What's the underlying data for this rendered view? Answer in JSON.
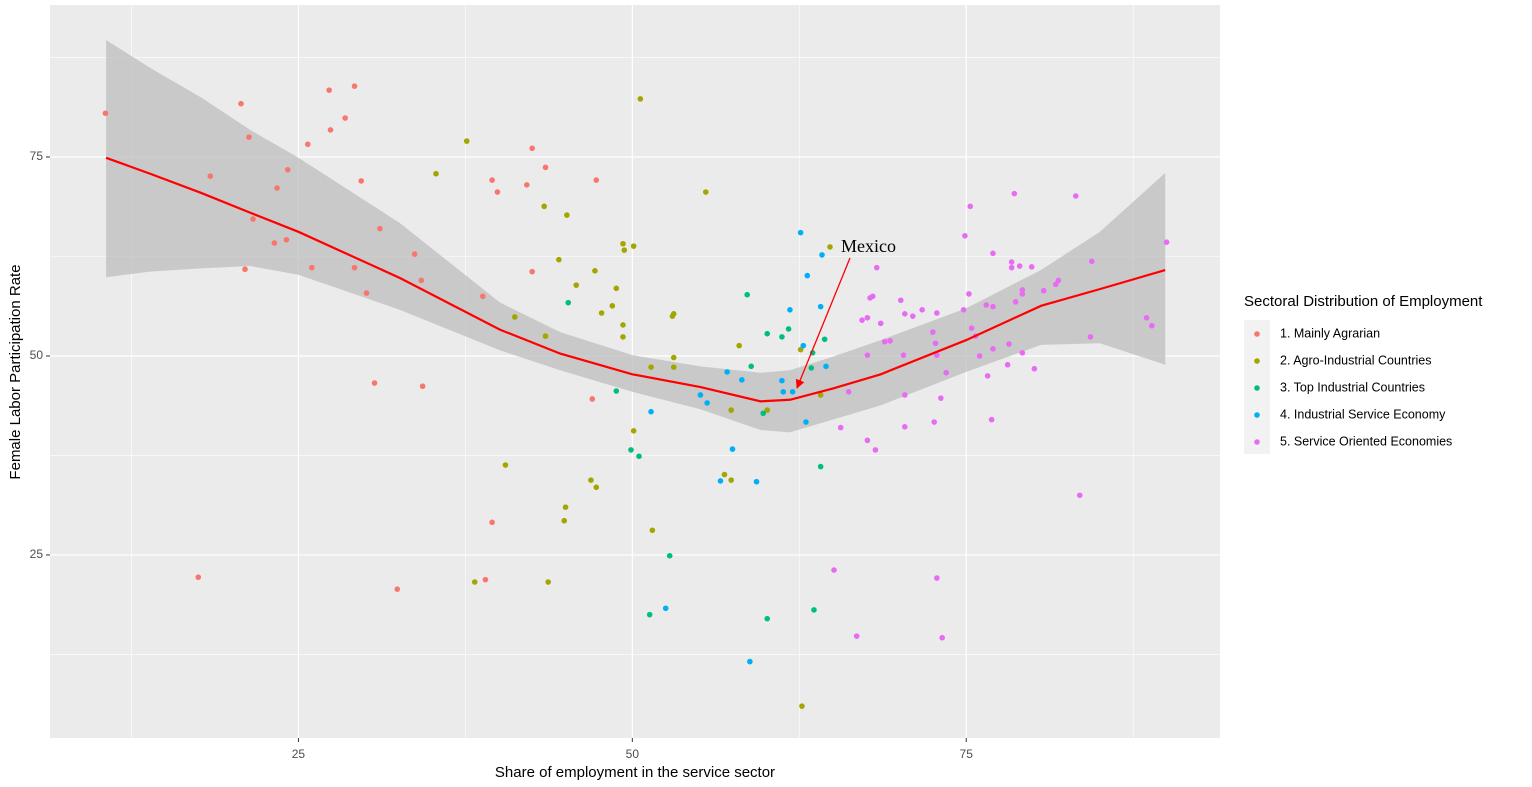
{
  "chart_data": {
    "type": "scatter",
    "x_label": "Share of employment in the service sector",
    "y_label": "Female Labor Participation Rate",
    "xlim": [
      6.4,
      94.0
    ],
    "ylim": [
      2.0,
      94.1
    ],
    "xticks": [
      25,
      50,
      75
    ],
    "yticks": [
      25,
      50,
      75
    ],
    "x_minor_ticks": [
      12.5,
      37.5,
      62.5,
      87.5
    ],
    "y_minor_ticks": [
      12.5,
      37.5,
      62.5,
      87.5
    ],
    "grid": true,
    "legend_title": "Sectoral Distribution of Employment",
    "legend_position": "right",
    "annotation": "Mexico",
    "smooth": {
      "color": "#FF0000",
      "band_color": "#BEBEBE",
      "x": [
        10.6,
        13.9,
        17.7,
        21.4,
        25,
        32.6,
        40.1,
        44.6,
        50,
        55.1,
        59.6,
        61.8,
        65.0,
        68.6,
        75,
        80.6,
        85.0,
        89.9
      ],
      "values": [
        74.9,
        72.9,
        70.5,
        68.0,
        65.6,
        59.8,
        53.3,
        50.3,
        47.7,
        46.1,
        44.3,
        44.5,
        45.9,
        47.7,
        52.0,
        56.3,
        58.4,
        60.8
      ],
      "upper": [
        89.7,
        86.2,
        82.5,
        78.4,
        74.9,
        66.7,
        56.7,
        53.0,
        50.1,
        48.7,
        47.9,
        48.2,
        49.9,
        52.0,
        56.0,
        60.8,
        65.6,
        73.0
      ],
      "lower": [
        59.9,
        60.6,
        61.0,
        61.3,
        60.2,
        55.8,
        50.7,
        48.2,
        45.5,
        43.3,
        40.7,
        40.4,
        42.0,
        43.8,
        48.0,
        51.4,
        51.6,
        48.9
      ]
    },
    "series": [
      {
        "name": "1. Mainly Agrarian",
        "color": "#F8766D",
        "x": [
          10.55,
          17.5,
          18.4,
          20.7,
          21.0,
          21.3,
          21.6,
          23.2,
          23.4,
          24.1,
          24.2,
          25.7,
          26.0,
          27.3,
          27.4,
          28.5,
          29.2,
          29.2,
          29.7,
          30.1,
          30.7,
          31.1,
          32.4,
          33.7,
          34.2,
          34.3,
          38.8,
          39.0,
          39.5,
          39.5,
          39.9,
          42.1,
          42.5,
          42.5,
          43.5,
          47.3,
          47.0
        ],
        "values": [
          80.5,
          22.2,
          72.6,
          81.7,
          60.9,
          77.5,
          67.2,
          64.2,
          71.1,
          64.6,
          73.4,
          76.6,
          61.1,
          83.4,
          78.4,
          79.9,
          61.1,
          83.9,
          72.0,
          57.9,
          46.6,
          66.0,
          20.7,
          62.8,
          59.5,
          46.2,
          57.5,
          21.9,
          72.1,
          29.1,
          70.6,
          71.5,
          76.1,
          60.6,
          73.7,
          72.1,
          44.6
        ]
      },
      {
        "name": "2. Agro-Industrial Countries",
        "color": "#A3A500",
        "x": [
          50.6,
          37.6,
          35.3,
          43.4,
          45.1,
          44.5,
          45.8,
          47.2,
          47.7,
          48.5,
          48.8,
          49.3,
          49.4,
          50.1,
          49.3,
          49.3,
          41.2,
          43.5,
          53.1,
          53.0,
          53.1,
          53.1,
          55.5,
          58.0,
          57.4,
          56.9,
          57.4,
          46.9,
          47.3,
          51.4,
          50.1,
          40.5,
          45.0,
          44.9,
          51.5,
          38.2,
          43.7,
          62.6,
          64.8,
          64.1,
          62.7,
          60.1
        ],
        "values": [
          82.3,
          77.0,
          72.9,
          68.8,
          67.7,
          62.1,
          58.9,
          60.7,
          55.4,
          56.3,
          58.5,
          64.1,
          63.3,
          63.8,
          53.9,
          52.4,
          54.9,
          52.5,
          55.3,
          55.0,
          49.8,
          48.6,
          70.6,
          51.3,
          43.2,
          35.1,
          34.4,
          34.4,
          33.5,
          48.6,
          40.6,
          36.3,
          31.0,
          29.3,
          28.1,
          21.6,
          21.6,
          50.8,
          63.7,
          45.1,
          6.0,
          43.2
        ]
      },
      {
        "name": "3. Top Industrial Countries",
        "color": "#00BF7D",
        "x": [
          45.2,
          48.8,
          49.9,
          50.5,
          52.8,
          51.3,
          58.6,
          58.9,
          60.1,
          61.2,
          61.7,
          63.4,
          63.5,
          64.4,
          64.1,
          63.6,
          60.1,
          59.8
        ],
        "values": [
          56.7,
          45.6,
          38.2,
          37.4,
          24.9,
          17.5,
          57.7,
          48.7,
          52.8,
          52.4,
          53.4,
          48.5,
          50.4,
          52.1,
          36.1,
          18.1,
          17.0,
          42.8
        ]
      },
      {
        "name": "4. Industrial Service Economy",
        "color": "#00B0F6",
        "x": [
          52.5,
          51.4,
          55.1,
          55.6,
          57.1,
          58.2,
          57.5,
          56.6,
          59.3,
          58.8,
          62.6,
          63.1,
          61.8,
          62.8,
          64.2,
          64.1,
          64.5,
          61.2,
          61.3,
          62.0,
          63.0
        ],
        "values": [
          18.3,
          43.0,
          45.1,
          44.1,
          48.0,
          47.0,
          38.3,
          34.3,
          34.2,
          11.6,
          65.5,
          60.1,
          55.8,
          51.3,
          62.7,
          56.2,
          48.7,
          46.9,
          45.5,
          45.5,
          41.7
        ]
      },
      {
        "name": "5. Service Oriented Economies",
        "color": "#E76BF3",
        "x": [
          75.3,
          74.9,
          75.2,
          78.6,
          83.2,
          77.0,
          78.4,
          78.4,
          79.0,
          79.9,
          78.7,
          79.2,
          79.2,
          80.8,
          81.7,
          81.9,
          84.4,
          76.5,
          77.0,
          75.4,
          75.7,
          74.8,
          78.2,
          79.2,
          80.1,
          78.1,
          77.0,
          76.0,
          76.6,
          84.3,
          88.5,
          88.9,
          90.0,
          76.9,
          83.5,
          68.3,
          68.0,
          67.8,
          67.2,
          67.6,
          68.6,
          70.1,
          70.4,
          71.0,
          71.7,
          72.5,
          72.8,
          68.9,
          69.3,
          67.6,
          70.3,
          72.7,
          72.8,
          73.5,
          73.1,
          70.4,
          72.6,
          70.4,
          67.6,
          68.2,
          65.6,
          66.2,
          65.1,
          66.8,
          72.8,
          73.2
        ],
        "values": [
          68.8,
          65.1,
          57.8,
          70.4,
          70.1,
          62.9,
          61.8,
          61.1,
          61.3,
          61.2,
          56.8,
          58.3,
          57.8,
          58.2,
          59.0,
          59.5,
          61.9,
          56.4,
          56.2,
          53.5,
          52.5,
          55.8,
          51.5,
          50.4,
          48.4,
          48.9,
          50.9,
          50.0,
          47.5,
          52.4,
          54.8,
          53.8,
          64.3,
          42.0,
          32.5,
          61.1,
          57.5,
          57.3,
          54.5,
          54.8,
          54.1,
          57.0,
          55.3,
          55.0,
          55.8,
          53.0,
          55.4,
          51.8,
          51.9,
          50.1,
          50.1,
          51.6,
          50.1,
          47.9,
          44.7,
          45.1,
          41.7,
          41.1,
          39.4,
          38.2,
          41.0,
          45.5,
          23.1,
          14.8,
          22.1,
          14.6
        ]
      }
    ]
  }
}
